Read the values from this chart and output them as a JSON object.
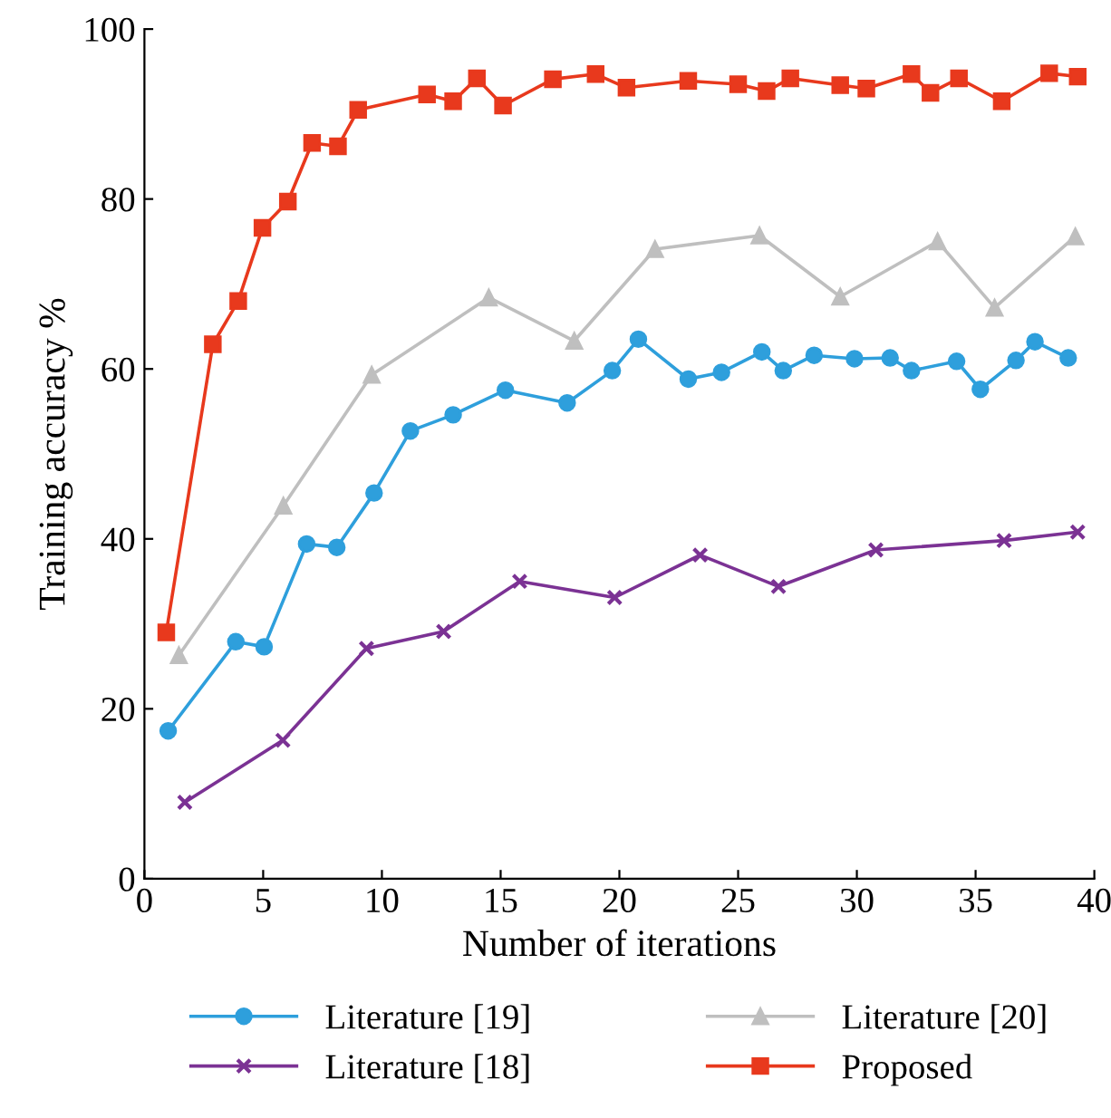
{
  "chart_data": {
    "type": "line",
    "xlabel": "Number of iterations",
    "ylabel": "Training accuracy %",
    "xlim": [
      0,
      40
    ],
    "ylim": [
      0,
      100
    ],
    "xticks": [
      0,
      5,
      10,
      15,
      20,
      25,
      30,
      35,
      40
    ],
    "yticks": [
      0,
      20,
      40,
      60,
      80,
      100
    ],
    "grid": false,
    "legend": "bottom",
    "line_style": "solid",
    "series": [
      {
        "name": "Literature [19]",
        "color": "#2e9fdc",
        "marker": "circle",
        "x": [
          1.0,
          3.85,
          5.04,
          6.83,
          8.1,
          9.67,
          11.2,
          13.0,
          15.2,
          17.8,
          19.7,
          20.8,
          22.9,
          24.3,
          26.0,
          26.9,
          28.2,
          29.9,
          31.4,
          32.3,
          34.2,
          35.2,
          36.7,
          37.5,
          38.9
        ],
        "values": [
          17.4,
          27.9,
          27.3,
          39.4,
          39.0,
          45.4,
          52.7,
          54.6,
          57.5,
          56.0,
          59.8,
          63.5,
          58.8,
          59.6,
          62.0,
          59.8,
          61.6,
          61.2,
          61.3,
          59.8,
          60.9,
          57.6,
          61.0,
          63.2,
          61.3
        ]
      },
      {
        "name": "Literature [20]",
        "color": "#bfbfbf",
        "marker": "triangle",
        "x": [
          1.45,
          5.85,
          9.57,
          14.5,
          18.1,
          21.5,
          25.9,
          29.3,
          33.4,
          35.8,
          39.2
        ],
        "values": [
          26.3,
          43.9,
          59.3,
          68.4,
          63.3,
          74.1,
          75.7,
          68.5,
          75.0,
          67.2,
          75.6
        ]
      },
      {
        "name": "Literature [18]",
        "color": "#7b3294",
        "marker": "cross",
        "x": [
          1.7,
          5.83,
          9.35,
          12.6,
          15.8,
          19.8,
          23.4,
          26.7,
          30.8,
          36.2,
          39.3
        ],
        "values": [
          9.0,
          16.3,
          27.1,
          29.1,
          35.0,
          33.1,
          38.1,
          34.4,
          38.7,
          39.8,
          40.8
        ]
      },
      {
        "name": "Proposed",
        "color": "#e8391d",
        "marker": "square",
        "x": [
          0.92,
          2.88,
          3.95,
          4.97,
          6.04,
          7.06,
          8.15,
          9.0,
          11.9,
          13.0,
          14.0,
          15.1,
          17.2,
          19.0,
          20.3,
          22.9,
          25.0,
          26.2,
          27.2,
          29.3,
          30.4,
          32.3,
          33.1,
          34.3,
          36.1,
          38.1,
          39.3
        ],
        "values": [
          29.0,
          62.9,
          68.0,
          76.6,
          79.7,
          86.6,
          86.2,
          90.5,
          92.3,
          91.5,
          94.2,
          91.0,
          94.1,
          94.7,
          93.1,
          93.9,
          93.5,
          92.7,
          94.2,
          93.4,
          93.0,
          94.7,
          92.5,
          94.2,
          91.5,
          94.8,
          94.4
        ]
      }
    ]
  }
}
